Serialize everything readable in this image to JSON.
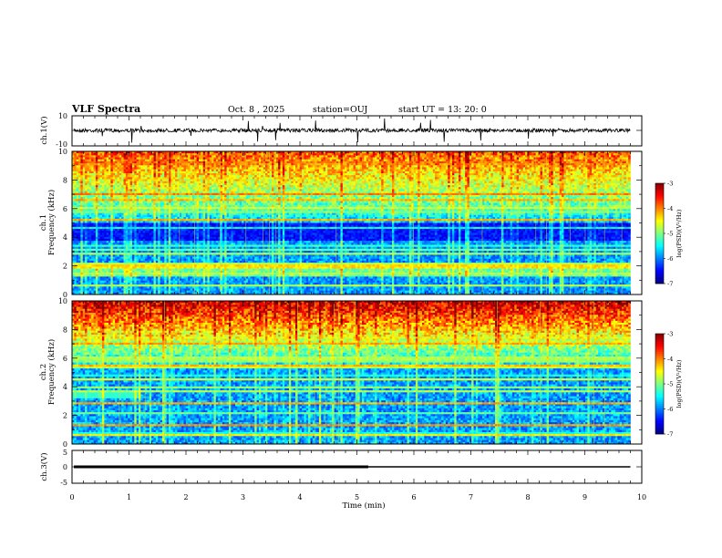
{
  "header": {
    "title": "VLF Spectra",
    "date": "Oct. 8 , 2025",
    "station": "station=OUJ",
    "start": "start UT = 13: 20: 0"
  },
  "chart_data": [
    {
      "type": "line",
      "title": "",
      "ylabel": "ch.1(V)",
      "ylim": [
        -10,
        10
      ],
      "yticks": [
        "10",
        "-10"
      ],
      "x": [
        0,
        9.8
      ],
      "description_values_level": 0
    },
    {
      "type": "heatmap",
      "ylabel_line1": "ch.1",
      "ylabel_line2": "Frequency (kHz)",
      "ylim": [
        0,
        10
      ],
      "yticks": [
        "0",
        "2",
        "4",
        "6",
        "8",
        "10"
      ],
      "xlim": [
        0,
        10
      ],
      "colorbar": {
        "label": "log(PSD)(V²/Hz)",
        "ticks": [
          "-3",
          "-4",
          "-5",
          "-6",
          "-7"
        ],
        "range": [
          -7,
          -3
        ]
      }
    },
    {
      "type": "heatmap",
      "ylabel_line1": "ch.2",
      "ylabel_line2": "Frequency (kHz)",
      "ylim": [
        0,
        10
      ],
      "yticks": [
        "0",
        "2",
        "4",
        "6",
        "8",
        "10"
      ],
      "xlim": [
        0,
        10
      ],
      "colorbar": {
        "label": "log(PSD)(V²/Hz)",
        "ticks": [
          "-3",
          "-4",
          "-5",
          "-6",
          "-7"
        ],
        "range": [
          -7,
          -3
        ]
      }
    },
    {
      "type": "line",
      "ylabel": "ch.3(V)",
      "ylim": [
        -5,
        5
      ],
      "yticks": [
        "5",
        "0",
        "-5"
      ],
      "series": [
        {
          "x": [
            0,
            5.2
          ],
          "y": [
            0,
            0
          ]
        },
        {
          "x": [
            5.2,
            9.8
          ],
          "y": [
            0,
            0
          ]
        }
      ]
    }
  ],
  "xaxis": {
    "label": "Time (min)",
    "ticks": [
      "0",
      "1",
      "2",
      "3",
      "4",
      "5",
      "6",
      "7",
      "8",
      "9",
      "10"
    ],
    "xlim": [
      0,
      10
    ]
  }
}
